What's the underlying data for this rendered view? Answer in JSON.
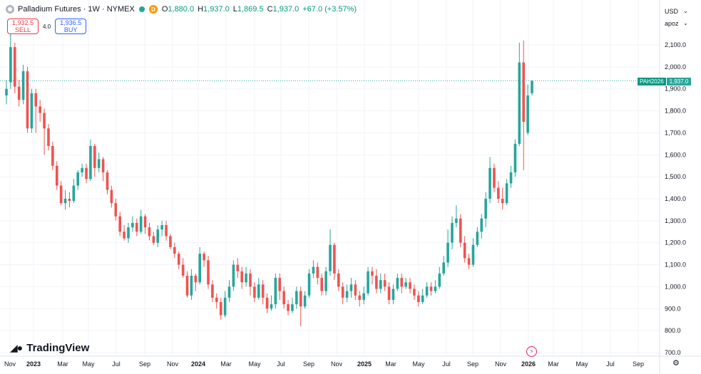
{
  "legend": {
    "title": "Palladium Futures · 1W · NYMEX",
    "open_key": "O",
    "open_val": "1,880.0",
    "high_key": "H",
    "high_val": "1,937.0",
    "low_key": "L",
    "low_val": "1,869.5",
    "close_key": "C",
    "close_val": "1,937.0",
    "change": "+67.0 (+3.57%)",
    "badge": "D"
  },
  "trade": {
    "sell_price": "1,932.5",
    "sell_label": "SELL",
    "spread": "4.0",
    "buy_price": "1,936.5",
    "buy_label": "BUY"
  },
  "currency": "USD",
  "scale_mode": "apoz",
  "price_tag": {
    "symbol": "PAH2026",
    "value": "1,937.0"
  },
  "logo_text": "TradingView",
  "colors": {
    "up": "#26a69a",
    "down": "#ef5350",
    "grid": "#f0f3fa",
    "last_line": "#26a69a"
  },
  "icons": [
    "settings-icon",
    "flash-icon",
    "chevron-down-icon",
    "tradingview-logo-icon"
  ],
  "chart_data": {
    "type": "candlestick",
    "symbol": "PAH2026",
    "timeframe": "1W",
    "y_ticks": [
      "700.0",
      "800.0",
      "900.0",
      "1,000.0",
      "1,100.0",
      "1,200.0",
      "1,300.0",
      "1,400.0",
      "1,500.0",
      "1,600.0",
      "1,700.0",
      "1,800.0",
      "1,900.0",
      "2,000.0",
      "2,100.0"
    ],
    "x_ticks": [
      "Nov",
      "2023",
      "Mar",
      "May",
      "Jul",
      "Sep",
      "Nov",
      "2024",
      "Mar",
      "May",
      "Jul",
      "Sep",
      "Nov",
      "2025",
      "Mar",
      "May",
      "Jul",
      "Sep",
      "Nov",
      "2026",
      "Mar",
      "May",
      "Jul",
      "Sep"
    ],
    "x_ticks_bold": [
      "2023",
      "2024",
      "2025",
      "2026"
    ],
    "ylim": [
      680,
      2160
    ],
    "last_price": 1937.0,
    "candles": [
      [
        1870,
        1900,
        1940,
        1830
      ],
      [
        1930,
        2090,
        2150,
        1900
      ],
      [
        2090,
        1910,
        2110,
        1880
      ],
      [
        1910,
        1850,
        1940,
        1820
      ],
      [
        1850,
        1980,
        2010,
        1830
      ],
      [
        1980,
        1720,
        2000,
        1700
      ],
      [
        1720,
        1880,
        1900,
        1700
      ],
      [
        1880,
        1820,
        1900,
        1700
      ],
      [
        1820,
        1790,
        1850,
        1750
      ],
      [
        1790,
        1720,
        1810,
        1600
      ],
      [
        1720,
        1640,
        1740,
        1620
      ],
      [
        1640,
        1550,
        1660,
        1530
      ],
      [
        1550,
        1460,
        1570,
        1440
      ],
      [
        1460,
        1380,
        1480,
        1370
      ],
      [
        1380,
        1400,
        1440,
        1350
      ],
      [
        1400,
        1390,
        1430,
        1360
      ],
      [
        1390,
        1460,
        1490,
        1380
      ],
      [
        1460,
        1520,
        1530,
        1440
      ],
      [
        1520,
        1540,
        1560,
        1500
      ],
      [
        1540,
        1490,
        1560,
        1470
      ],
      [
        1490,
        1640,
        1670,
        1480
      ],
      [
        1640,
        1540,
        1650,
        1500
      ],
      [
        1540,
        1580,
        1610,
        1520
      ],
      [
        1580,
        1520,
        1590,
        1480
      ],
      [
        1520,
        1440,
        1530,
        1420
      ],
      [
        1440,
        1380,
        1460,
        1360
      ],
      [
        1380,
        1320,
        1400,
        1300
      ],
      [
        1320,
        1250,
        1340,
        1230
      ],
      [
        1250,
        1220,
        1280,
        1210
      ],
      [
        1220,
        1270,
        1290,
        1200
      ],
      [
        1270,
        1290,
        1320,
        1250
      ],
      [
        1290,
        1250,
        1310,
        1230
      ],
      [
        1250,
        1320,
        1350,
        1240
      ],
      [
        1320,
        1270,
        1330,
        1240
      ],
      [
        1270,
        1230,
        1290,
        1210
      ],
      [
        1230,
        1200,
        1250,
        1190
      ],
      [
        1200,
        1260,
        1280,
        1180
      ],
      [
        1260,
        1280,
        1300,
        1230
      ],
      [
        1280,
        1230,
        1300,
        1210
      ],
      [
        1230,
        1180,
        1240,
        1170
      ],
      [
        1180,
        1150,
        1200,
        1130
      ],
      [
        1150,
        1100,
        1160,
        1080
      ],
      [
        1100,
        1050,
        1130,
        1040
      ],
      [
        1050,
        960,
        1070,
        950
      ],
      [
        960,
        1050,
        1080,
        940
      ],
      [
        1050,
        1020,
        1060,
        980
      ],
      [
        1020,
        1150,
        1180,
        1010
      ],
      [
        1150,
        1120,
        1160,
        1090
      ],
      [
        1120,
        1010,
        1140,
        990
      ],
      [
        1010,
        950,
        1030,
        930
      ],
      [
        950,
        930,
        970,
        900
      ],
      [
        930,
        870,
        950,
        850
      ],
      [
        870,
        950,
        980,
        860
      ],
      [
        950,
        1000,
        1030,
        930
      ],
      [
        1000,
        1100,
        1120,
        980
      ],
      [
        1100,
        1070,
        1130,
        1040
      ],
      [
        1070,
        1020,
        1090,
        990
      ],
      [
        1020,
        1060,
        1090,
        1000
      ],
      [
        1060,
        1000,
        1080,
        960
      ],
      [
        1000,
        950,
        1020,
        930
      ],
      [
        950,
        1010,
        1040,
        940
      ],
      [
        1010,
        950,
        1030,
        920
      ],
      [
        950,
        900,
        970,
        880
      ],
      [
        900,
        920,
        960,
        890
      ],
      [
        920,
        1040,
        1060,
        900
      ],
      [
        1040,
        980,
        1060,
        940
      ],
      [
        980,
        920,
        1000,
        900
      ],
      [
        920,
        890,
        940,
        870
      ],
      [
        890,
        920,
        950,
        880
      ],
      [
        920,
        980,
        1000,
        900
      ],
      [
        980,
        910,
        1000,
        820
      ],
      [
        910,
        960,
        980,
        900
      ],
      [
        960,
        1060,
        1080,
        950
      ],
      [
        1060,
        1090,
        1120,
        1040
      ],
      [
        1090,
        1040,
        1110,
        1010
      ],
      [
        1040,
        980,
        1060,
        960
      ],
      [
        980,
        1070,
        1090,
        960
      ],
      [
        1070,
        1190,
        1260,
        1050
      ],
      [
        1190,
        1060,
        1200,
        1030
      ],
      [
        1060,
        1000,
        1080,
        980
      ],
      [
        1000,
        950,
        1020,
        920
      ],
      [
        950,
        980,
        1010,
        930
      ],
      [
        980,
        1010,
        1040,
        950
      ],
      [
        1010,
        960,
        1030,
        940
      ],
      [
        960,
        940,
        980,
        910
      ],
      [
        940,
        970,
        1000,
        920
      ],
      [
        970,
        1070,
        1090,
        960
      ],
      [
        1070,
        1050,
        1090,
        1010
      ],
      [
        1050,
        990,
        1080,
        970
      ],
      [
        990,
        1030,
        1060,
        970
      ],
      [
        1030,
        1000,
        1060,
        980
      ],
      [
        1000,
        940,
        1020,
        920
      ],
      [
        940,
        990,
        1010,
        920
      ],
      [
        990,
        1040,
        1060,
        980
      ],
      [
        1040,
        1000,
        1060,
        970
      ],
      [
        1000,
        1020,
        1040,
        990
      ],
      [
        1020,
        990,
        1040,
        970
      ],
      [
        990,
        960,
        1010,
        940
      ],
      [
        960,
        930,
        980,
        910
      ],
      [
        930,
        960,
        990,
        920
      ],
      [
        960,
        1000,
        1020,
        950
      ],
      [
        1000,
        980,
        1020,
        960
      ],
      [
        980,
        1000,
        1030,
        970
      ],
      [
        1000,
        1060,
        1090,
        990
      ],
      [
        1060,
        1110,
        1140,
        1050
      ],
      [
        1110,
        1200,
        1260,
        1090
      ],
      [
        1200,
        1290,
        1320,
        1170
      ],
      [
        1290,
        1310,
        1370,
        1270
      ],
      [
        1310,
        1200,
        1330,
        1180
      ],
      [
        1200,
        1130,
        1230,
        1110
      ],
      [
        1130,
        1100,
        1150,
        1080
      ],
      [
        1100,
        1190,
        1220,
        1090
      ],
      [
        1190,
        1250,
        1270,
        1180
      ],
      [
        1250,
        1310,
        1330,
        1220
      ],
      [
        1310,
        1400,
        1430,
        1270
      ],
      [
        1400,
        1540,
        1590,
        1380
      ],
      [
        1540,
        1450,
        1560,
        1430
      ],
      [
        1450,
        1400,
        1480,
        1380
      ],
      [
        1400,
        1380,
        1450,
        1350
      ],
      [
        1380,
        1470,
        1490,
        1370
      ],
      [
        1470,
        1520,
        1550,
        1450
      ],
      [
        1520,
        1650,
        1670,
        1500
      ],
      [
        1650,
        2020,
        2110,
        1640
      ],
      [
        2020,
        1750,
        2120,
        1530
      ],
      [
        1700,
        1870,
        1920,
        1690
      ],
      [
        1880,
        1937,
        1937,
        1869.5
      ]
    ]
  }
}
